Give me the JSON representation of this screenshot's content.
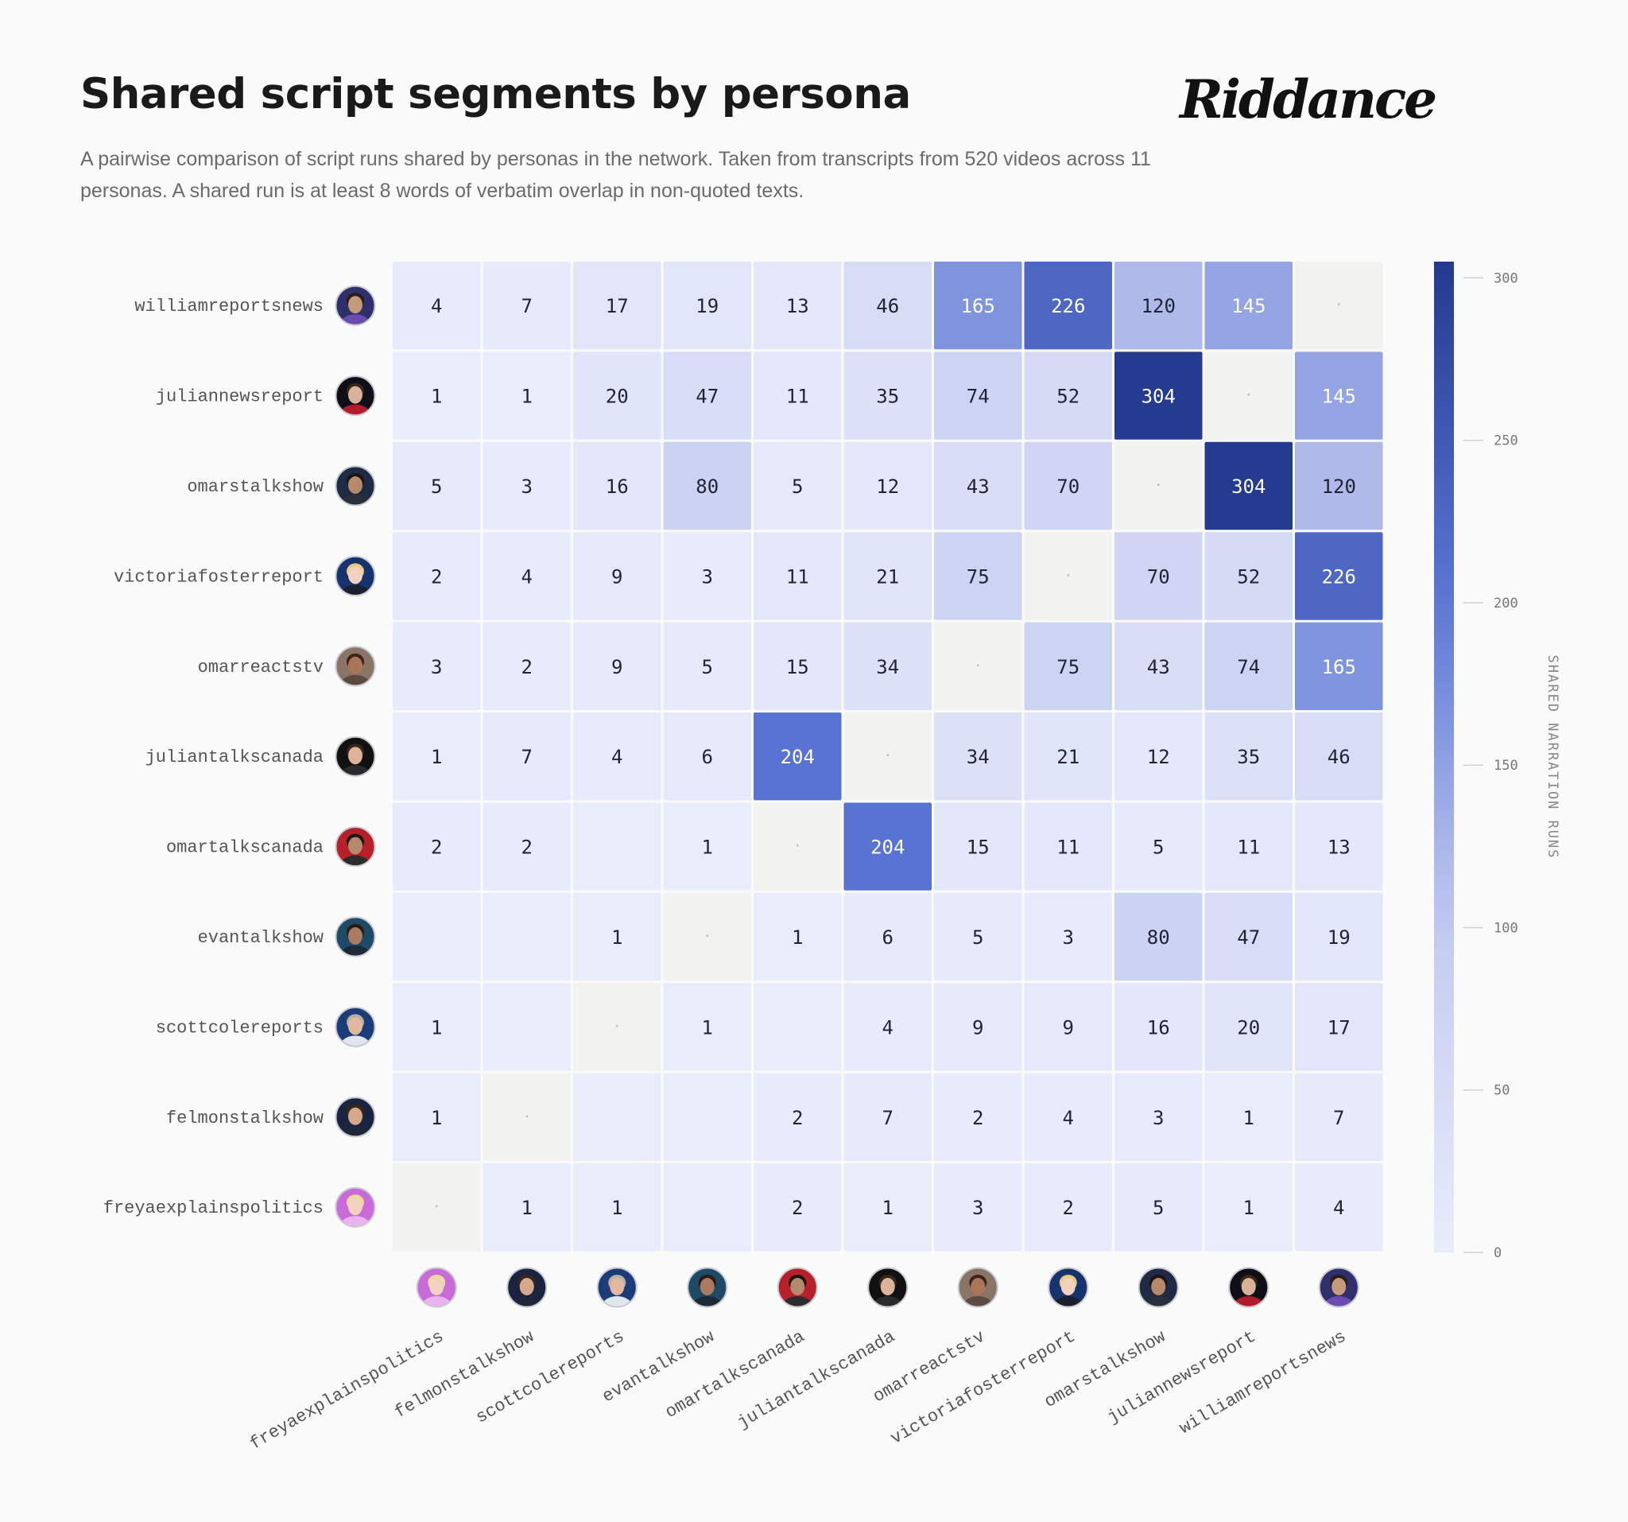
{
  "header": {
    "title": "Shared script segments by persona",
    "subtitle": "A pairwise comparison of script runs shared by personas in the network. Taken from transcripts from 520 videos across 11 personas. A shared run is at least 8 words of verbatim overlap in non-quoted texts.",
    "brand": "Riddance"
  },
  "colors": {
    "scale_low": "#e9ecfb",
    "scale_high": "#233a8e",
    "diagonal": "#f2f2f0",
    "background": "#fafafa"
  },
  "chart_data": {
    "type": "heatmap",
    "title": "Shared script segments by persona",
    "rows": [
      "williamreportsnews",
      "juliannewsreport",
      "omarstalkshow",
      "victoriafosterreport",
      "omarreactstv",
      "juliantalkscanada",
      "omartalkscanada",
      "evantalkshow",
      "scottcolereports",
      "felmonstalkshow",
      "freyaexplainspolitics"
    ],
    "columns": [
      "freyaexplainspolitics",
      "felmonstalkshow",
      "scottcolereports",
      "evantalkshow",
      "omartalkscanada",
      "juliantalkscanada",
      "omarreactstv",
      "victoriafosterreport",
      "omarstalkshow",
      "juliannewsreport",
      "williamreportsnews"
    ],
    "values": [
      [
        4,
        7,
        17,
        19,
        13,
        46,
        165,
        226,
        120,
        145,
        null
      ],
      [
        1,
        1,
        20,
        47,
        11,
        35,
        74,
        52,
        304,
        null,
        145
      ],
      [
        5,
        3,
        16,
        80,
        5,
        12,
        43,
        70,
        null,
        304,
        120
      ],
      [
        2,
        4,
        9,
        3,
        11,
        21,
        75,
        null,
        70,
        52,
        226
      ],
      [
        3,
        2,
        9,
        5,
        15,
        34,
        null,
        75,
        43,
        74,
        165
      ],
      [
        1,
        7,
        4,
        6,
        204,
        null,
        34,
        21,
        12,
        35,
        46
      ],
      [
        2,
        2,
        0,
        1,
        null,
        204,
        15,
        11,
        5,
        11,
        13
      ],
      [
        0,
        0,
        1,
        null,
        1,
        6,
        5,
        3,
        80,
        47,
        19
      ],
      [
        1,
        0,
        null,
        1,
        0,
        4,
        9,
        9,
        16,
        20,
        17
      ],
      [
        1,
        null,
        0,
        0,
        2,
        7,
        2,
        4,
        3,
        1,
        7
      ],
      [
        null,
        1,
        1,
        0,
        2,
        1,
        3,
        2,
        5,
        1,
        4
      ]
    ],
    "diagonal_marker": "·",
    "colorbar": {
      "label": "SHARED NARRATION RUNS",
      "range": [
        0,
        305
      ],
      "ticks": [
        0,
        50,
        100,
        150,
        200,
        250,
        300
      ]
    },
    "avatars": {
      "williamreportsnews": {
        "bg": "#2e2f6b",
        "skin": "#c59a7c",
        "hair": "#2a1d14",
        "shirt": "#6a4bb0"
      },
      "juliannewsreport": {
        "bg": "#0e0f18",
        "skin": "#d9b29a",
        "hair": "#3a2616",
        "shirt": "#b01c2a"
      },
      "omarstalkshow": {
        "bg": "#1f2a44",
        "skin": "#b58a6c",
        "hair": "#1c140e",
        "shirt": "#2a2f3c"
      },
      "victoriafosterreport": {
        "bg": "#17336e",
        "skin": "#f0d2bf",
        "hair": "#e8cc86",
        "shirt": "#1b2030"
      },
      "omarreactstv": {
        "bg": "#8a7466",
        "skin": "#a9765b",
        "hair": "#3c2418",
        "shirt": "#5b4a40"
      },
      "juliantalkscanada": {
        "bg": "#111111",
        "skin": "#dcb49c",
        "hair": "#3a2616",
        "shirt": "#2a2a2a"
      },
      "omartalkscanada": {
        "bg": "#b5202a",
        "skin": "#b58a6c",
        "hair": "#1c140e",
        "shirt": "#2c2c2c"
      },
      "evantalkshow": {
        "bg": "#1d4a66",
        "skin": "#a87b62",
        "hair": "#2a1a10",
        "shirt": "#1c2a36"
      },
      "scottcolereports": {
        "bg": "#1b3c78",
        "skin": "#e2b8a0",
        "hair": "#b9b0a6",
        "shirt": "#dfe6ee"
      },
      "felmonstalkshow": {
        "bg": "#1a2440",
        "skin": "#d6a98e",
        "hair": "#3a2616",
        "shirt": "#20263a"
      },
      "freyaexplainspolitics": {
        "bg": "#c86ad8",
        "skin": "#f2d2c0",
        "hair": "#f0d79a",
        "shirt": "#e8b3ee"
      }
    }
  }
}
